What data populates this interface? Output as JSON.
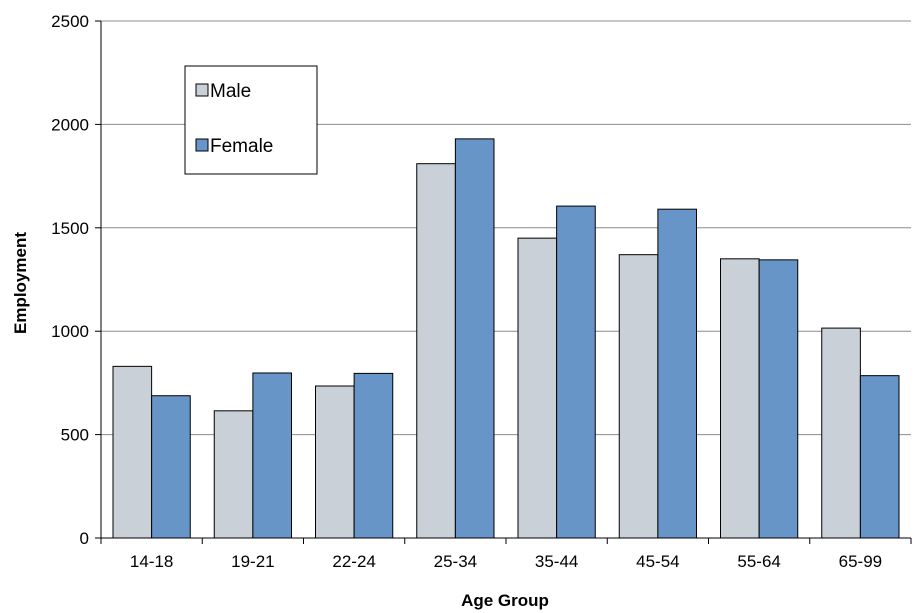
{
  "chart_data": {
    "type": "bar",
    "title": "",
    "xlabel": "Age Group",
    "ylabel": "Employment",
    "ylim": [
      0,
      2500
    ],
    "yticks": [
      0,
      500,
      1000,
      1500,
      2000,
      2500
    ],
    "grid": true,
    "legend_position": "top-left",
    "categories": [
      "14-18",
      "19-21",
      "22-24",
      "25-34",
      "35-44",
      "45-54",
      "55-64",
      "65-99"
    ],
    "series": [
      {
        "name": "Male",
        "color": "#c9d0d8",
        "values": [
          830,
          615,
          735,
          1810,
          1450,
          1370,
          1350,
          1015
        ]
      },
      {
        "name": "Female",
        "color": "#6795c8",
        "values": [
          688,
          798,
          796,
          1930,
          1605,
          1590,
          1345,
          785
        ]
      }
    ]
  }
}
